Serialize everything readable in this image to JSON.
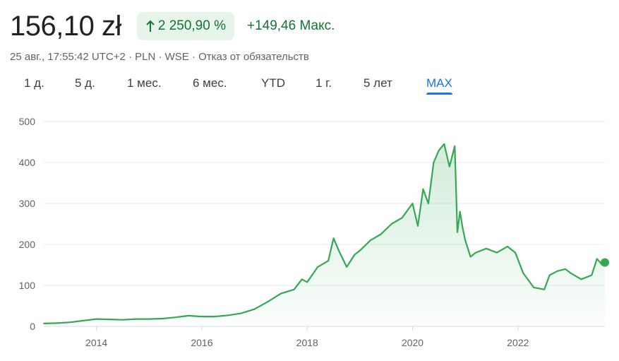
{
  "quote": {
    "price": "156,10 zł",
    "change_percent": "2 250,90 %",
    "change_abs": "+149,46",
    "change_period": "Макс.",
    "arrow_icon": "arrow-up-icon",
    "positive_color": "#137333"
  },
  "meta": {
    "text": "25 авг., 17:55:42 UTC+2 · PLN · WSE · Отказ от обязательств"
  },
  "tabs": [
    {
      "label": "1 д."
    },
    {
      "label": "5 д."
    },
    {
      "label": "1 мес."
    },
    {
      "label": "6 мес."
    },
    {
      "label": "YTD"
    },
    {
      "label": "1 г."
    },
    {
      "label": "5 лет"
    },
    {
      "label": "MAX",
      "selected": true
    }
  ],
  "chart_data": {
    "type": "area",
    "line_color": "#34a853",
    "ylim": [
      0,
      500
    ],
    "y_ticks": [
      0,
      100,
      200,
      300,
      400,
      500
    ],
    "x_ticks": [
      "2014",
      "2016",
      "2018",
      "2020",
      "2022"
    ],
    "x": [
      2013.0,
      2013.25,
      2013.5,
      2013.75,
      2014.0,
      2014.25,
      2014.5,
      2014.75,
      2015.0,
      2015.25,
      2015.5,
      2015.75,
      2016.0,
      2016.25,
      2016.5,
      2016.75,
      2017.0,
      2017.25,
      2017.5,
      2017.75,
      2017.9,
      2018.0,
      2018.2,
      2018.4,
      2018.5,
      2018.6,
      2018.75,
      2018.9,
      2019.0,
      2019.2,
      2019.4,
      2019.6,
      2019.8,
      2020.0,
      2020.1,
      2020.2,
      2020.3,
      2020.4,
      2020.5,
      2020.6,
      2020.7,
      2020.8,
      2020.85,
      2020.9,
      2020.95,
      2021.0,
      2021.1,
      2021.2,
      2021.4,
      2021.6,
      2021.8,
      2021.95,
      2022.1,
      2022.3,
      2022.5,
      2022.6,
      2022.75,
      2022.9,
      2023.0,
      2023.2,
      2023.4,
      2023.5,
      2023.6,
      2023.65
    ],
    "values": [
      7,
      8,
      10,
      14,
      18,
      17,
      16,
      18,
      18,
      19,
      22,
      26,
      24,
      24,
      27,
      32,
      42,
      60,
      80,
      90,
      115,
      108,
      145,
      160,
      215,
      185,
      145,
      175,
      185,
      210,
      225,
      250,
      265,
      300,
      245,
      335,
      300,
      400,
      430,
      445,
      390,
      440,
      230,
      280,
      240,
      210,
      170,
      180,
      190,
      180,
      195,
      180,
      130,
      95,
      90,
      125,
      135,
      140,
      130,
      115,
      125,
      165,
      150,
      156
    ]
  }
}
